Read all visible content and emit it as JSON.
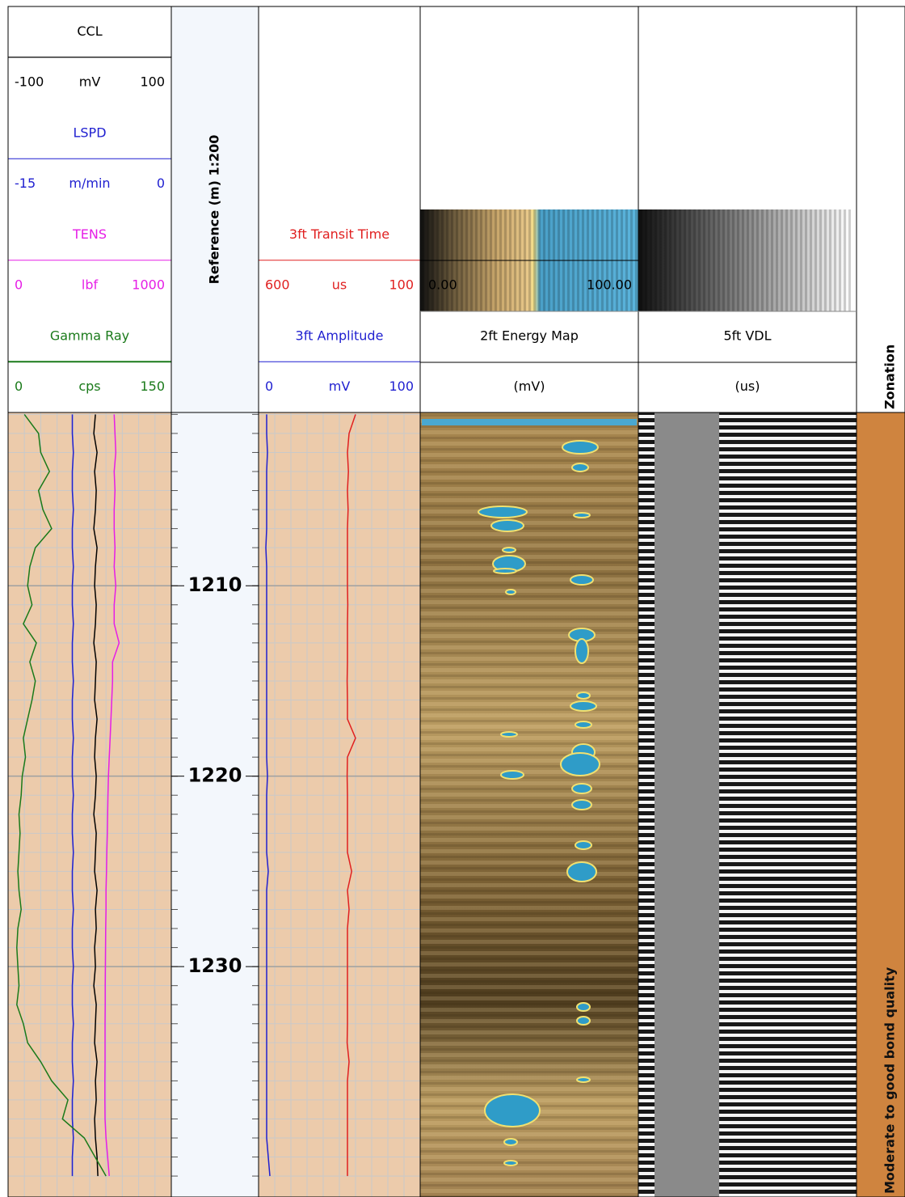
{
  "chart_data": {
    "type": "well-log",
    "yaxis_title": "Reference (m) 1:200",
    "ylim": [
      1200.9,
      1242.1
    ],
    "yticks": [
      1210,
      1220,
      1230
    ],
    "depth": [
      1201,
      1202,
      1203,
      1204,
      1205,
      1206,
      1207,
      1208,
      1209,
      1210,
      1211,
      1212,
      1213,
      1214,
      1215,
      1216,
      1217,
      1218,
      1219,
      1220,
      1221,
      1222,
      1223,
      1224,
      1225,
      1226,
      1227,
      1228,
      1229,
      1230,
      1231,
      1232,
      1233,
      1234,
      1235,
      1236,
      1237,
      1238,
      1239,
      1240,
      1241
    ],
    "tracks": [
      {
        "series": [
          {
            "name": "CCL",
            "unit": "mV",
            "color": "#000000",
            "xlim": [
              -100,
              100
            ],
            "values": [
              7,
              5,
              9,
              6,
              8,
              7,
              5,
              9,
              7,
              6,
              8,
              7,
              5,
              8,
              7,
              6,
              9,
              7,
              6,
              8,
              7,
              5,
              8,
              7,
              6,
              9,
              7,
              8,
              6,
              7,
              5,
              8,
              7,
              6,
              9,
              7,
              8,
              6,
              7,
              9,
              10
            ]
          },
          {
            "name": "LSPD",
            "unit": "m/min",
            "color": "#1f1fd0",
            "xlim": [
              -15,
              0
            ],
            "values": [
              -9.1,
              -9.1,
              -9.0,
              -9.1,
              -9.1,
              -9.0,
              -9.1,
              -9.1,
              -9.0,
              -9.1,
              -9.1,
              -9.0,
              -9.1,
              -9.1,
              -9.0,
              -9.1,
              -9.1,
              -9.0,
              -9.1,
              -9.1,
              -9.0,
              -9.1,
              -9.1,
              -9.0,
              -9.1,
              -9.1,
              -9.0,
              -9.1,
              -9.1,
              -9.0,
              -9.1,
              -9.1,
              -9.0,
              -9.1,
              -9.1,
              -9.0,
              -9.1,
              -9.1,
              -9.0,
              -9.1,
              -9.1
            ]
          },
          {
            "name": "TENS",
            "unit": "lbf",
            "color": "#e61ee6",
            "xlim": [
              0,
              1000
            ],
            "values": [
              650,
              655,
              660,
              650,
              655,
              650,
              650,
              655,
              650,
              660,
              650,
              650,
              680,
              640,
              640,
              635,
              630,
              625,
              620,
              615,
              612,
              610,
              608,
              605,
              603,
              600,
              600,
              598,
              597,
              596,
              595,
              595,
              594,
              594,
              594,
              593,
              593,
              594,
              600,
              610,
              620
            ]
          },
          {
            "name": "Gamma Ray",
            "unit": "cps",
            "color": "#1a7a1a",
            "xlim": [
              0,
              150
            ],
            "values": [
              15,
              28,
              30,
              38,
              28,
              32,
              40,
              25,
              20,
              18,
              22,
              14,
              26,
              20,
              25,
              22,
              18,
              14,
              16,
              13,
              12,
              10,
              11,
              10,
              9,
              10,
              12,
              9,
              8,
              9,
              10,
              8,
              14,
              18,
              30,
              40,
              55,
              50,
              70,
              80,
              90
            ]
          }
        ]
      },
      {
        "series": [
          {
            "name": "3ft Transit Time",
            "unit": "us",
            "color": "#e02020",
            "xlim": [
              600,
              100
            ],
            "values": [
              300,
              320,
              325,
              322,
              325,
              323,
              325,
              325,
              325,
              325,
              324,
              325,
              325,
              325,
              326,
              325,
              325,
              300,
              325,
              326,
              325,
              325,
              325,
              325,
              312,
              325,
              320,
              325,
              325,
              325,
              325,
              325,
              325,
              326,
              320,
              325,
              325,
              325,
              325,
              325,
              325
            ]
          },
          {
            "name": "3ft Amplitude",
            "unit": "mV",
            "color": "#1f1fd0",
            "xlim": [
              0,
              100
            ],
            "values": [
              5,
              5,
              5.5,
              5,
              5,
              5,
              5,
              4.5,
              5,
              5,
              5,
              5,
              5,
              5,
              5,
              5,
              5,
              5,
              5,
              5.5,
              5,
              5,
              5,
              5,
              6,
              5,
              5,
              5,
              5,
              5,
              5,
              5,
              5,
              5,
              5,
              5,
              5,
              5,
              5,
              6,
              7
            ]
          }
        ]
      }
    ],
    "images": [
      {
        "name": "2ft Energy Map",
        "unit": "(mV)",
        "scale": [
          {
            "value": 0,
            "label": "0.00"
          },
          {
            "value": 100,
            "label": "100.00"
          }
        ]
      },
      {
        "name": "5ft VDL",
        "unit": "(us)"
      }
    ],
    "zonation": {
      "title": "Zonation",
      "label": "Moderate to good bond quality",
      "color": "#cf843f"
    }
  }
}
